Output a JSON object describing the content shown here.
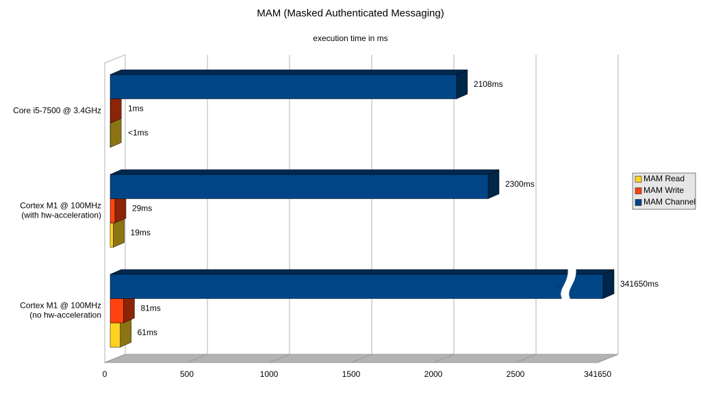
{
  "chart_data": {
    "type": "bar3d_horizontal",
    "title": "MAM (Masked Authenticated Messaging)",
    "subtitle": "execution time in ms",
    "categories": [
      "Core i5-7500 @ 3.4GHz",
      "Cortex M1 @ 100MHz\n(with hw-acceleration)",
      "Cortex M1 @ 100MHz\n(no hw-acceleration"
    ],
    "series": [
      {
        "name": "MAM Read",
        "color": "#ffd320",
        "values": [
          0.5,
          19,
          61
        ],
        "value_labels": [
          "<1ms",
          "19ms",
          "61ms"
        ]
      },
      {
        "name": "MAM Write",
        "color": "#ff420e",
        "values": [
          1,
          29,
          81
        ],
        "value_labels": [
          "1ms",
          "29ms",
          "81ms"
        ]
      },
      {
        "name": "MAM Channel",
        "color": "#004586",
        "values": [
          2108,
          2300,
          341650
        ],
        "value_labels": [
          "2108ms",
          "2300ms",
          "341650ms"
        ]
      }
    ],
    "xlim": [
      0,
      341650
    ],
    "xticks": [
      0,
      500,
      1000,
      1500,
      2000,
      2500,
      {
        "value": 341650,
        "label": "341650"
      }
    ],
    "axis_break_label": "...",
    "grid": true,
    "legend": "right"
  }
}
